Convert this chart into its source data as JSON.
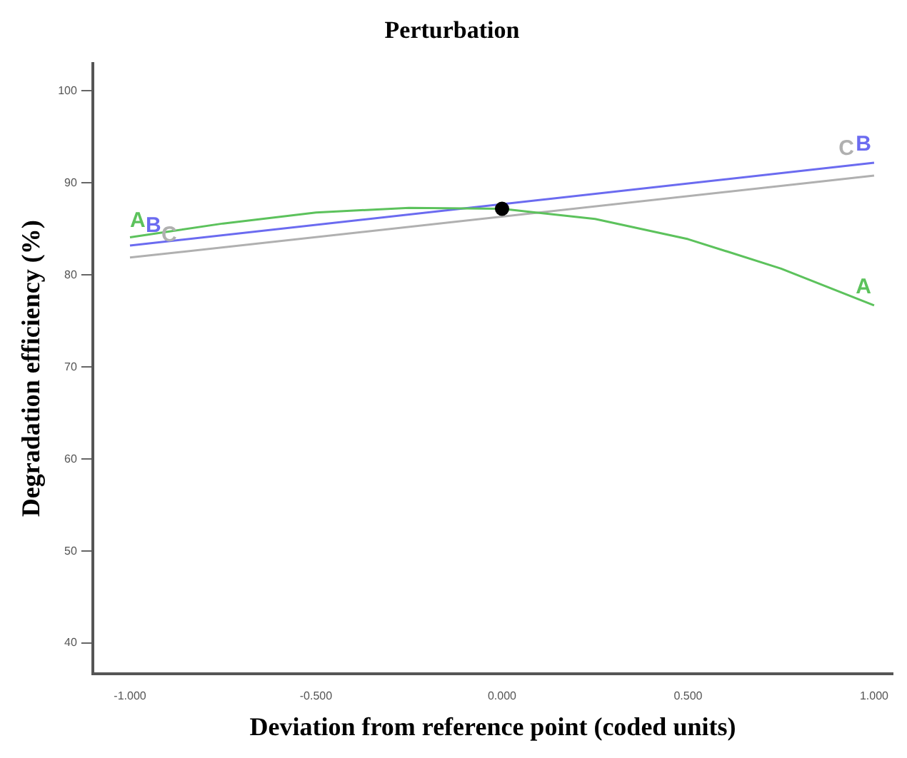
{
  "chart_data": {
    "type": "line",
    "title": "Perturbation",
    "xlabel": "Deviation from reference point (coded units)",
    "ylabel": "Degradation efficiency (%)",
    "xlim": [
      -1.1,
      1.05
    ],
    "xticks": [
      {
        "value": -1,
        "label": "-1.000"
      },
      {
        "value": -0.5,
        "label": "-0.500"
      },
      {
        "value": 0,
        "label": "0.000"
      },
      {
        "value": 0.5,
        "label": "0.500"
      },
      {
        "value": 1,
        "label": "1.000"
      }
    ],
    "ylim": [
      36.7,
      103
    ],
    "yticks": [
      40,
      50,
      60,
      70,
      80,
      90,
      100
    ],
    "series": [
      {
        "name": "A",
        "color": "#5cc25c",
        "x": [
          -1,
          -0.75,
          -0.5,
          -0.25,
          0,
          0.25,
          0.5,
          0.75,
          1
        ],
        "values": [
          84.1,
          85.6,
          86.8,
          87.3,
          87.2,
          86.1,
          83.9,
          80.7,
          76.7
        ]
      },
      {
        "name": "B",
        "color": "#6b6bf0",
        "x": [
          -1,
          1
        ],
        "values": [
          83.2,
          92.2
        ]
      },
      {
        "name": "C",
        "color": "#b0b0b0",
        "x": [
          -1,
          1
        ],
        "values": [
          81.9,
          90.8
        ]
      },
      {
        "type": "scatter",
        "color": "#000000",
        "x": [
          0
        ],
        "values": [
          87.2
        ],
        "marker": "circle"
      }
    ],
    "grid": false,
    "legend": false
  }
}
